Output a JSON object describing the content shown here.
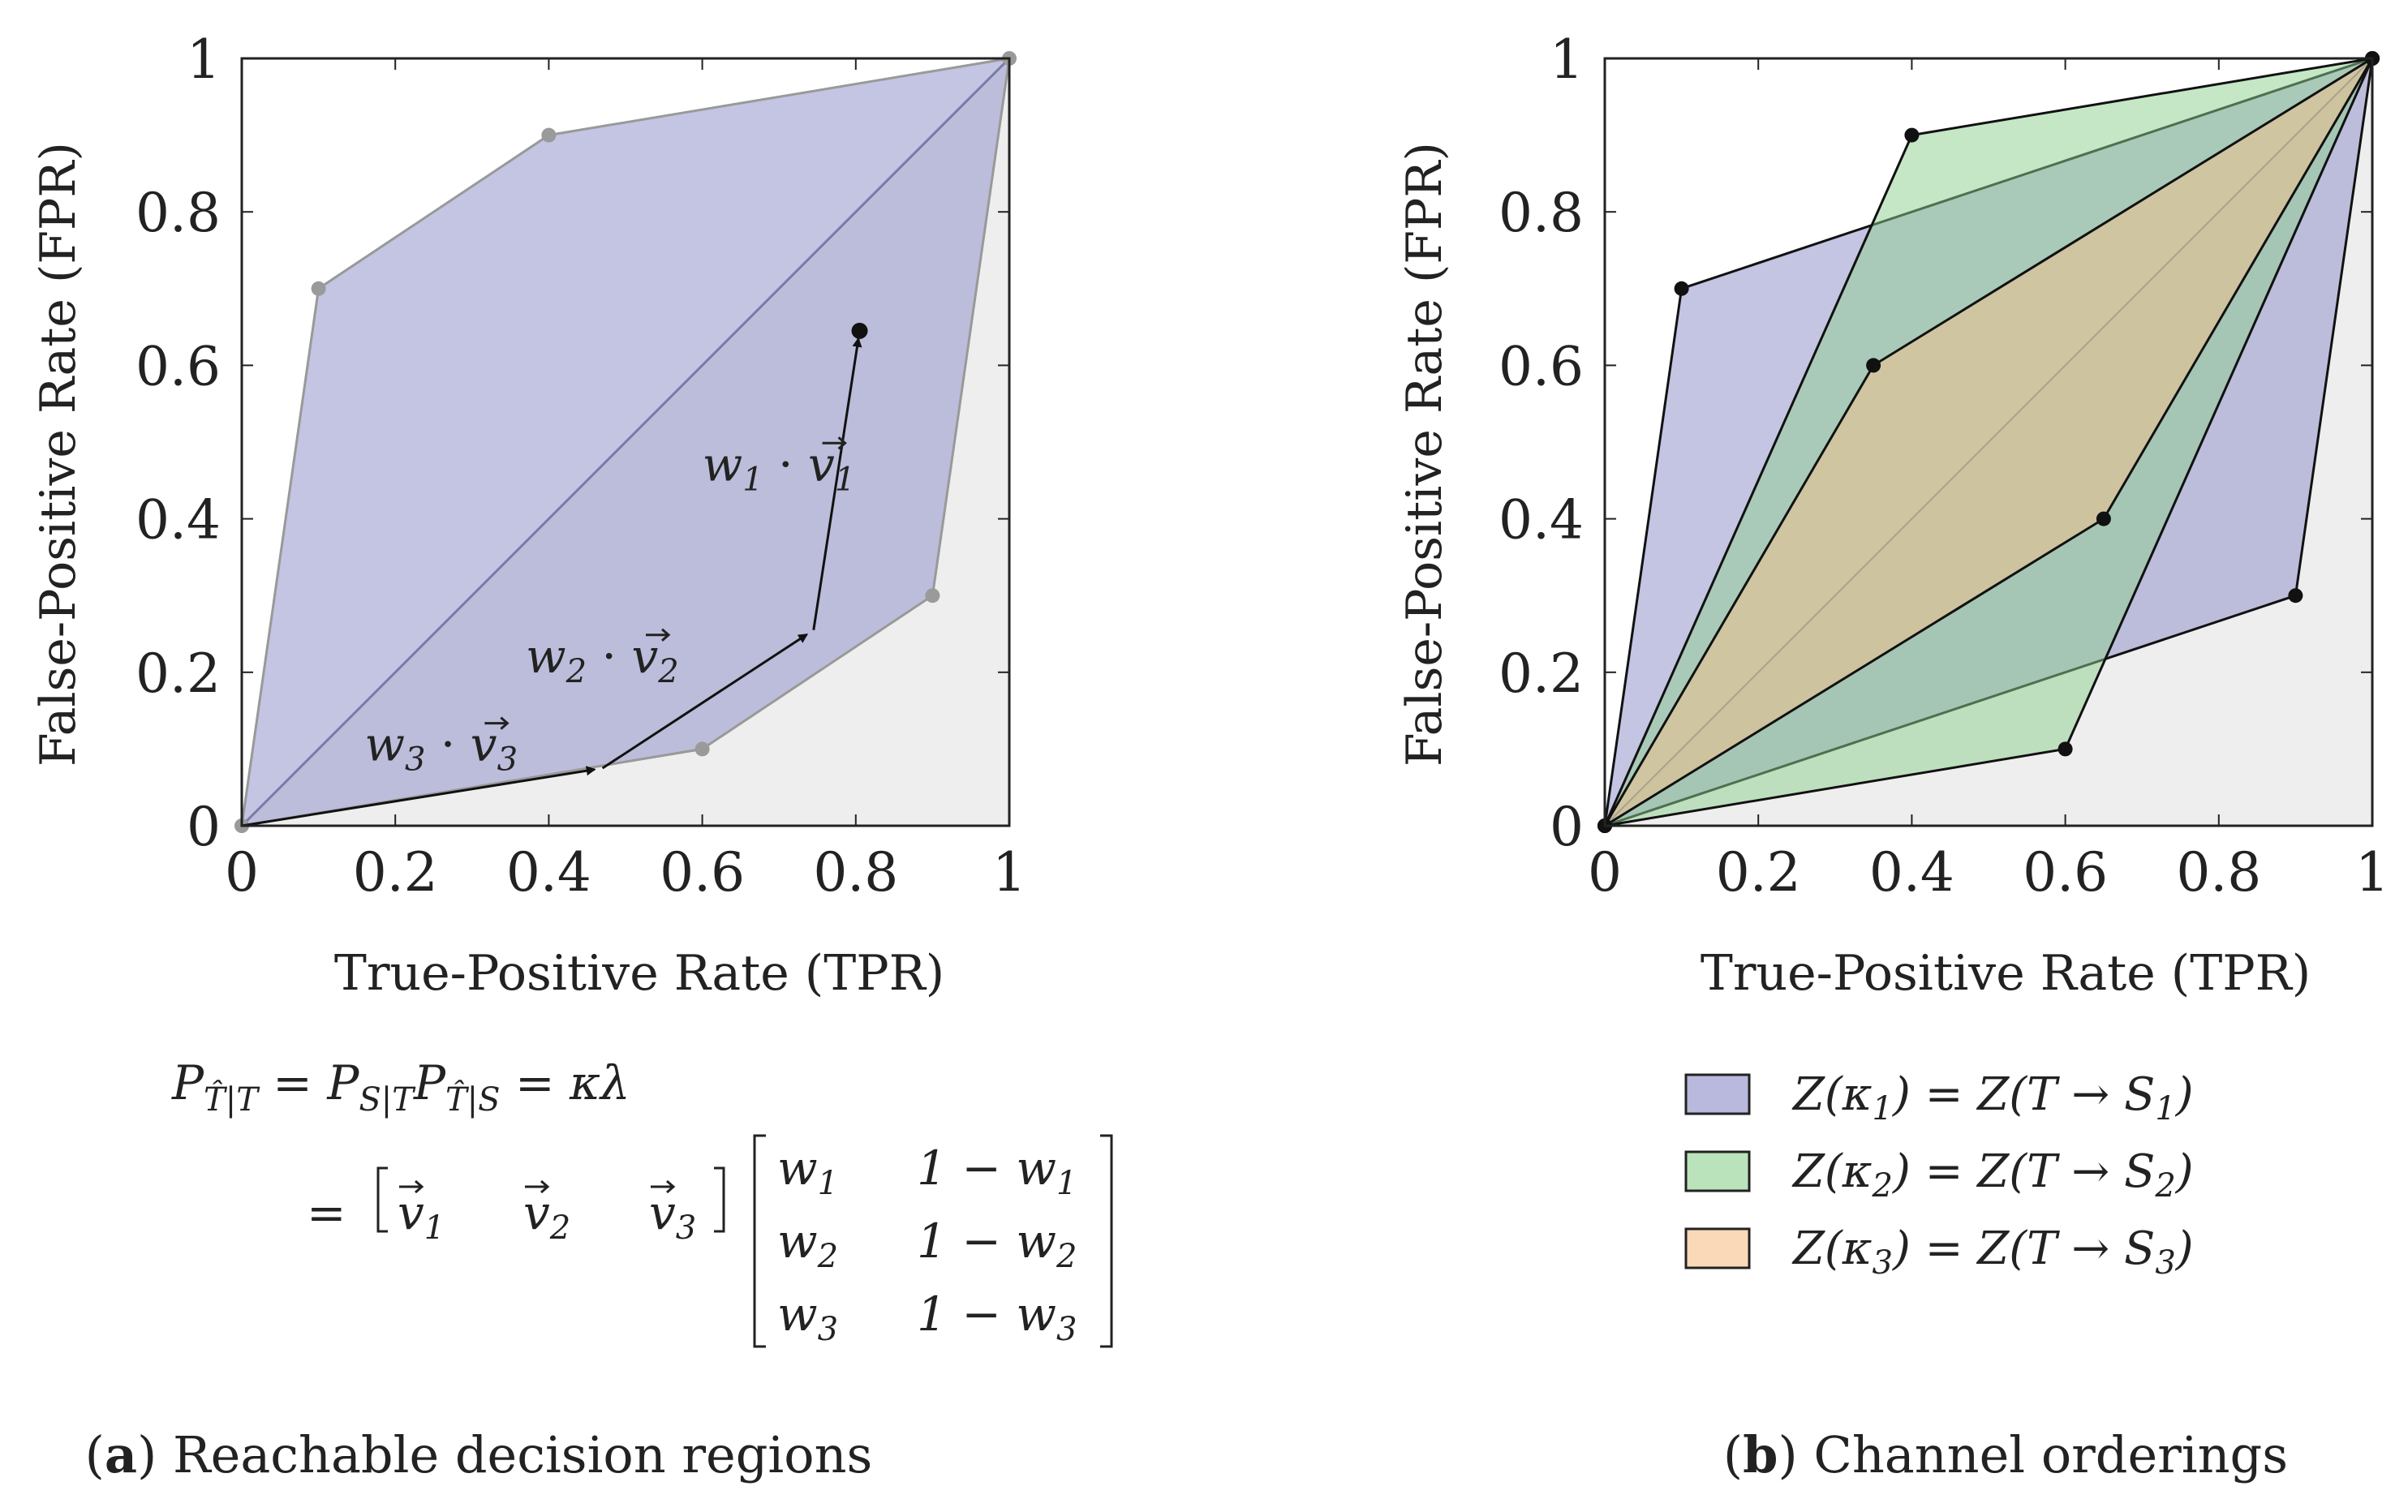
{
  "chart_data": [
    {
      "id": "a",
      "type": "area",
      "caption": {
        "letter": "a",
        "text": " Reachable decision regions"
      },
      "xlabel": "True-Positive Rate (TPR)",
      "ylabel": "False-Positive Rate (FPR)",
      "xlim": [
        0,
        1
      ],
      "ylim": [
        0,
        1
      ],
      "xticks": [
        0,
        0.2,
        0.4,
        0.6,
        0.8,
        1
      ],
      "yticks": [
        0,
        0.2,
        0.4,
        0.6,
        0.8,
        1
      ],
      "xtick_labels": [
        "0",
        "0.2",
        "0.4",
        "0.6",
        "0.8",
        "1"
      ],
      "ytick_labels": [
        "0",
        "0.2",
        "0.4",
        "0.6",
        "0.8",
        "1"
      ],
      "grid": false,
      "below_diagonal_shade": "#eeeeee",
      "region": {
        "color": "#8a8ac8",
        "edge_color": "#999999",
        "vertices": [
          [
            0,
            0
          ],
          [
            0.1,
            0.7
          ],
          [
            0.4,
            0.9
          ],
          [
            1,
            1
          ],
          [
            0.9,
            0.3
          ],
          [
            0.6,
            0.1
          ],
          [
            0,
            0
          ]
        ]
      },
      "diagonal": [
        [
          0,
          0
        ],
        [
          1,
          1
        ]
      ],
      "vector_path": [
        [
          0,
          0
        ],
        [
          0.47,
          0.075
        ],
        [
          0.745,
          0.255
        ],
        [
          0.805,
          0.645
        ]
      ],
      "vector_labels": [
        {
          "w": "w",
          "sub": "3",
          "dot": " · ",
          "v": "v",
          "vsub": "3",
          "x": 0.16,
          "y": 0.085
        },
        {
          "w": "w",
          "sub": "2",
          "dot": " · ",
          "v": "v",
          "vsub": "2",
          "x": 0.37,
          "y": 0.2
        },
        {
          "w": "w",
          "sub": "1",
          "dot": " · ",
          "v": "v",
          "vsub": "1",
          "x": 0.6,
          "y": 0.45
        }
      ],
      "equation": {
        "line1_lhs": "P",
        "line1_lhs_sub": "T̂|T",
        "line1_eq": " = ",
        "line1_mid1": "P",
        "line1_mid1_sub": "S|T",
        "line1_mid2": "P",
        "line1_mid2_sub": "T̂|S",
        "line1_rhs": " = κλ",
        "line2_eq": "=",
        "row_vector": [
          "v⃗1",
          "v⃗2",
          "v⃗3"
        ],
        "row_vector_base": [
          "v",
          "v",
          "v"
        ],
        "row_vector_sub": [
          "1",
          "2",
          "3"
        ],
        "matrix": [
          {
            "w": "w",
            "sub": "1",
            "one_minus": "1 − w",
            "sub2": "1"
          },
          {
            "w": "w",
            "sub": "2",
            "one_minus": "1 − w",
            "sub2": "2"
          },
          {
            "w": "w",
            "sub": "3",
            "one_minus": "1 − w",
            "sub2": "3"
          }
        ]
      }
    },
    {
      "id": "b",
      "type": "area",
      "caption": {
        "letter": "b",
        "text": " Channel orderings"
      },
      "xlabel": "True-Positive Rate (TPR)",
      "ylabel": "False-Positive Rate (FPR)",
      "xlim": [
        0,
        1
      ],
      "ylim": [
        0,
        1
      ],
      "xticks": [
        0,
        0.2,
        0.4,
        0.6,
        0.8,
        1
      ],
      "yticks": [
        0,
        0.2,
        0.4,
        0.6,
        0.8,
        1
      ],
      "xtick_labels": [
        "0",
        "0.2",
        "0.4",
        "0.6",
        "0.8",
        "1"
      ],
      "ytick_labels": [
        "0",
        "0.2",
        "0.4",
        "0.6",
        "0.8",
        "1"
      ],
      "grid": false,
      "below_diagonal_shade": "#eeeeee",
      "series": [
        {
          "name": "Z(κ1) = Z(T → S1)",
          "legend_parts": {
            "a": "Z(κ",
            "a_sub": "1",
            "b": ") = Z(T → S",
            "b_sub": "1",
            "c": ")"
          },
          "color": "#8a8ac8",
          "vertices": [
            [
              0,
              0
            ],
            [
              0.1,
              0.7
            ],
            [
              1,
              1
            ],
            [
              0.9,
              0.3
            ],
            [
              0,
              0
            ]
          ]
        },
        {
          "name": "Z(κ2) = Z(T → S2)",
          "legend_parts": {
            "a": "Z(κ",
            "a_sub": "2",
            "b": ") = Z(T → S",
            "b_sub": "2",
            "c": ")"
          },
          "color": "#8ed08e",
          "vertices": [
            [
              0,
              0
            ],
            [
              0.4,
              0.9
            ],
            [
              1,
              1
            ],
            [
              0.6,
              0.1
            ],
            [
              0,
              0
            ]
          ]
        },
        {
          "name": "Z(κ3) = Z(T → S3)",
          "legend_parts": {
            "a": "Z(κ",
            "a_sub": "3",
            "b": ") = Z(T → S",
            "b_sub": "3",
            "c": ")"
          },
          "color": "#f7bf8a",
          "vertices": [
            [
              0,
              0
            ],
            [
              0.35,
              0.6
            ],
            [
              1,
              1
            ],
            [
              0.65,
              0.4
            ],
            [
              0,
              0
            ]
          ]
        }
      ]
    }
  ]
}
